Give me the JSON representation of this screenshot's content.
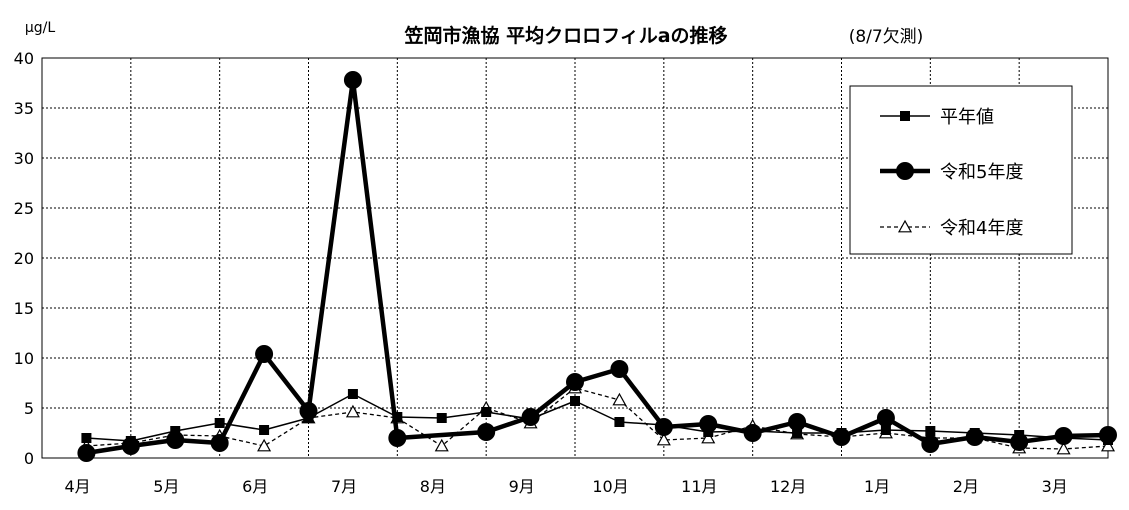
{
  "chart_data": {
    "type": "line",
    "title": "笠岡市漁協  平均クロロフィルaの推移",
    "note": "(8/7欠測)",
    "ylabel": "μg/L",
    "ylim": [
      0,
      40
    ],
    "yticks": [
      0,
      5,
      10,
      15,
      20,
      25,
      30,
      35,
      40
    ],
    "categories": [
      "4月",
      "5月",
      "6月",
      "7月",
      "8月",
      "9月",
      "10月",
      "11月",
      "12月",
      "1月",
      "2月",
      "3月"
    ],
    "grid": true,
    "legend_position": "top-right",
    "series": [
      {
        "name": "平年値",
        "style": "thin-solid-square",
        "color": "#000000",
        "x": [
          0.5,
          1.0,
          1.5,
          2.0,
          2.5,
          3.0,
          3.5,
          4.0,
          4.5,
          5.0,
          5.5,
          6.0,
          6.5,
          7.0,
          7.5,
          8.0,
          8.5,
          9.0,
          9.5,
          10.0,
          10.5,
          11.0,
          11.5,
          12.0
        ],
        "values": [
          2.0,
          1.7,
          2.7,
          3.5,
          2.8,
          4.0,
          6.4,
          4.1,
          4.0,
          4.6,
          3.9,
          5.7,
          3.6,
          3.3,
          2.6,
          2.7,
          2.5,
          2.5,
          2.8,
          2.7,
          2.5,
          2.3,
          2.0,
          1.8
        ]
      },
      {
        "name": "令和5年度",
        "style": "thick-solid-circle",
        "color": "#000000",
        "x": [
          0.5,
          1.0,
          1.5,
          2.0,
          2.5,
          3.0,
          3.5,
          4.0,
          5.0,
          5.5,
          6.0,
          6.5,
          7.0,
          7.5,
          8.0,
          8.5,
          9.0,
          9.5,
          10.0,
          10.5,
          11.0,
          11.5,
          12.0
        ],
        "values": [
          0.5,
          1.2,
          1.8,
          1.5,
          10.4,
          4.7,
          37.8,
          2.0,
          2.6,
          4.1,
          7.6,
          8.9,
          3.1,
          3.4,
          2.5,
          3.6,
          2.1,
          4.0,
          1.4,
          2.1,
          1.6,
          2.2,
          2.3
        ]
      },
      {
        "name": "令和4年度",
        "style": "thin-dashed-triangle",
        "color": "#000000",
        "x": [
          0.5,
          1.0,
          1.5,
          2.0,
          2.5,
          3.0,
          3.5,
          4.0,
          4.5,
          5.0,
          5.5,
          6.0,
          6.5,
          7.0,
          7.5,
          8.0,
          8.5,
          9.0,
          9.5,
          10.0,
          10.5,
          11.0,
          11.5,
          12.0
        ],
        "values": [
          1.2,
          1.5,
          2.3,
          2.2,
          1.2,
          4.0,
          4.6,
          4.0,
          1.2,
          5.0,
          3.5,
          7.0,
          5.8,
          1.8,
          2.0,
          3.2,
          2.4,
          2.1,
          2.5,
          2.0,
          2.0,
          1.0,
          0.9,
          1.2
        ]
      }
    ]
  }
}
